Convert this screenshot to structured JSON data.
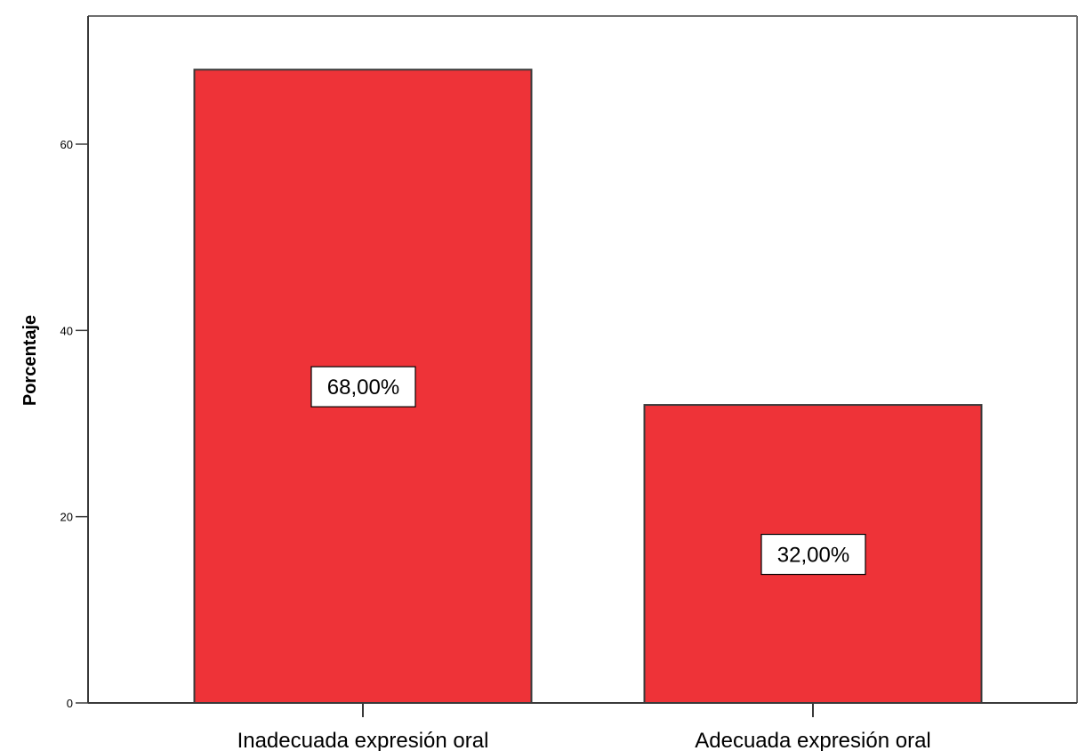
{
  "chart_data": {
    "type": "bar",
    "title": "",
    "xlabel": "",
    "ylabel": "Porcentaje",
    "categories": [
      "Inadecuada expresión oral",
      "Adecuada expresión oral"
    ],
    "values": [
      68,
      32
    ],
    "data_labels": [
      "68,00%",
      "32,00%"
    ],
    "ylim": [
      0,
      74
    ],
    "yticks": [
      0,
      20,
      40,
      60
    ],
    "ytick_labels": [
      "0",
      "20",
      "40",
      "60"
    ],
    "grid": false,
    "legend": "none",
    "colors": {
      "bar_fill": "#EE3338",
      "bar_stroke": "#3a3a3a",
      "axis": "#3a3a3a",
      "frame": "#6e6e6e",
      "background": "#ffffff"
    }
  }
}
